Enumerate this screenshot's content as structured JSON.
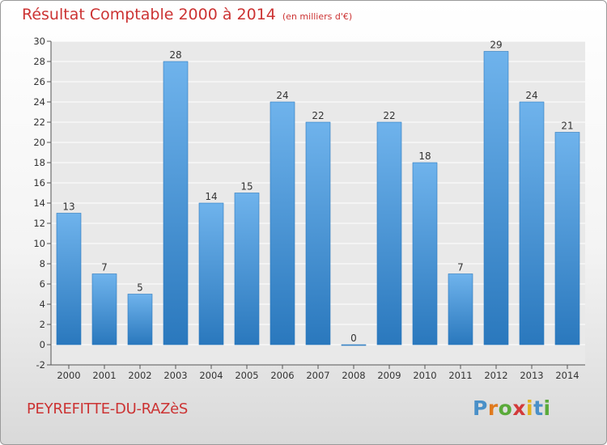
{
  "header": {
    "title": "Résultat Comptable 2000 à 2014",
    "subtitle": "(en milliers d'€)"
  },
  "commune": "PEYREFITTE-DU-RAZèS",
  "logo": {
    "letters": [
      {
        "char": "P",
        "color": "#4a90c8"
      },
      {
        "char": "r",
        "color": "#e07a1e"
      },
      {
        "char": "o",
        "color": "#5aaa3a"
      },
      {
        "char": "x",
        "color": "#d23a3a"
      },
      {
        "char": "i",
        "color": "#e0b21e"
      },
      {
        "char": "t",
        "color": "#4a90c8"
      },
      {
        "char": "i",
        "color": "#5aaa3a"
      }
    ]
  },
  "chart_data": {
    "type": "bar",
    "categories": [
      "2000",
      "2001",
      "2002",
      "2003",
      "2004",
      "2005",
      "2006",
      "2007",
      "2008",
      "2009",
      "2010",
      "2011",
      "2012",
      "2013",
      "2014"
    ],
    "values": [
      13,
      7,
      5,
      28,
      14,
      15,
      24,
      22,
      0,
      22,
      18,
      7,
      29,
      24,
      21
    ],
    "value_labels": [
      "13",
      "7",
      "5",
      "28",
      "14",
      "15",
      "24",
      "22",
      "0",
      "22",
      "18",
      "7",
      "29",
      "24",
      "21"
    ],
    "yticks": [
      "-2",
      "0",
      "2",
      "4",
      "6",
      "8",
      "10",
      "12",
      "14",
      "16",
      "18",
      "20",
      "22",
      "24",
      "26",
      "28",
      "30"
    ],
    "ylim": [
      -2,
      30
    ],
    "grid": true,
    "bar_color": "#3e8fd3"
  }
}
